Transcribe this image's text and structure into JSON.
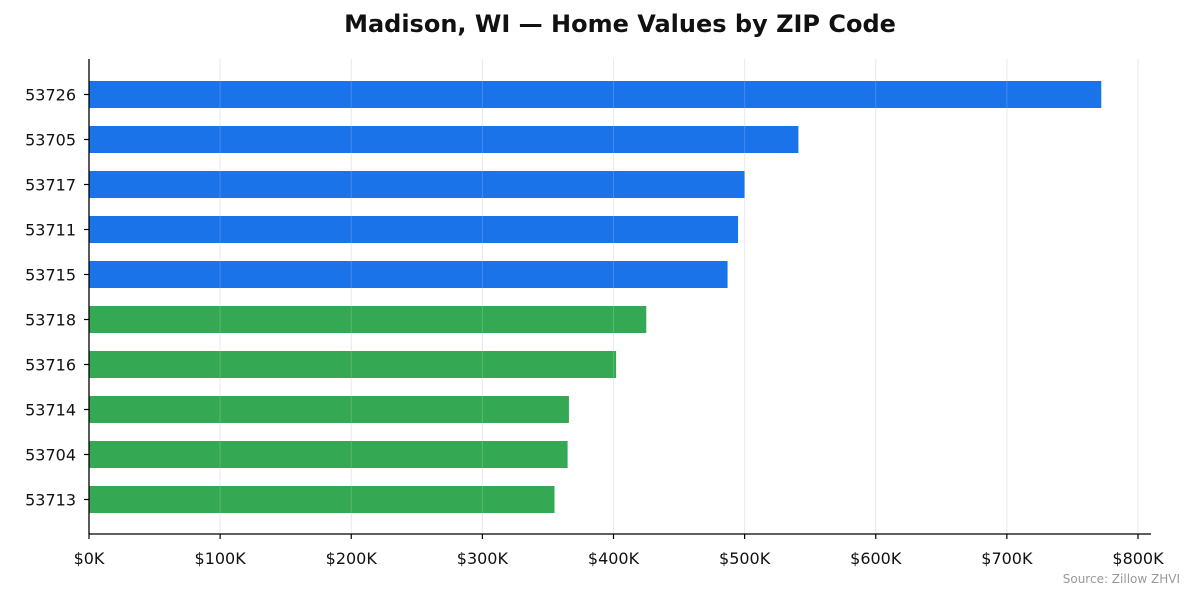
{
  "colors": {
    "top_tier": "#1a73e8",
    "lower_tier": "#34a853",
    "axis": "#000000",
    "grid": "#e6e6e6",
    "text": "#111111",
    "source_text": "#999999"
  },
  "source_note": "Source: Zillow ZHVI",
  "chart_data": {
    "type": "bar",
    "orientation": "horizontal",
    "title": "Madison, WI — Home Values by ZIP Code",
    "xlabel": "",
    "ylabel": "",
    "categories": [
      "53726",
      "53705",
      "53717",
      "53711",
      "53715",
      "53718",
      "53716",
      "53714",
      "53704",
      "53713"
    ],
    "values": [
      772000,
      541000,
      500000,
      495000,
      487000,
      425000,
      402000,
      366000,
      365000,
      355000
    ],
    "bar_colors": [
      "#1a73e8",
      "#1a73e8",
      "#1a73e8",
      "#1a73e8",
      "#1a73e8",
      "#34a853",
      "#34a853",
      "#34a853",
      "#34a853",
      "#34a853"
    ],
    "xlim": [
      0,
      810000
    ],
    "xticks": [
      0,
      100000,
      200000,
      300000,
      400000,
      500000,
      600000,
      700000,
      800000
    ],
    "xtick_labels": [
      "$0K",
      "$100K",
      "$200K",
      "$300K",
      "$400K",
      "$500K",
      "$600K",
      "$700K",
      "$800K"
    ],
    "grid": "vertical",
    "legend": "none"
  }
}
